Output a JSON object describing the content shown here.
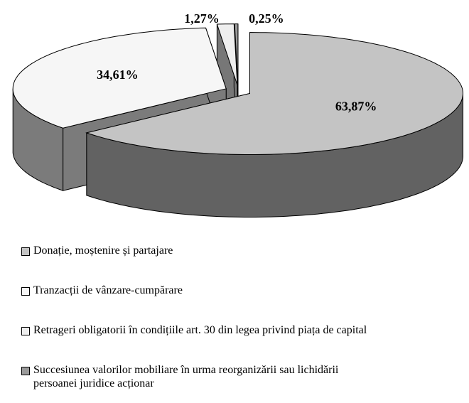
{
  "chart_data": {
    "type": "pie3d",
    "series": [
      {
        "name": "Donație, moștenire și partajare",
        "color": "#c4c4c4",
        "values": [
          63.87
        ],
        "value_labels": [
          "63,87%"
        ]
      },
      {
        "name": "Tranzacții de vânzare-cumpărare",
        "color": "#f6f6f6",
        "values": [
          34.61
        ],
        "value_labels": [
          "34,61%"
        ]
      },
      {
        "name": "Retrageri obligatorii în condițiile art. 30 din legea privind piața de capital",
        "color": "#eeeeee",
        "values": [
          1.27
        ],
        "value_labels": [
          "1,27%"
        ]
      },
      {
        "name": "Succesiunea valorilor mobiliare în urma reorganizării sau lichidării persoanei juridice acționar",
        "color": "#9a9a9a",
        "values": [
          0.25
        ],
        "value_labels": [
          "0,25%"
        ]
      }
    ],
    "legend": "bottom"
  }
}
